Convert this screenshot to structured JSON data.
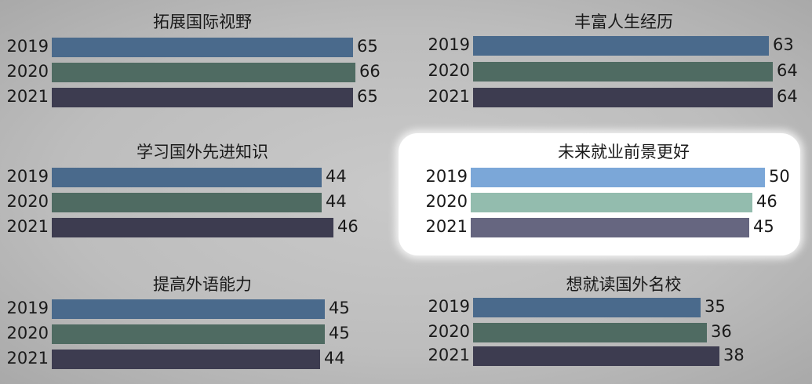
{
  "chart_data": {
    "type": "bar",
    "orientation": "horizontal",
    "categories": [
      "2019",
      "2020",
      "2021"
    ],
    "colors": {
      "2019": "#4a6a8c",
      "2020": "#4f6b62",
      "2021": "#3d3c50"
    },
    "highlight_colors": {
      "2019": "#7ba7d8",
      "2020": "#93bcae",
      "2021": "#666680"
    },
    "highlighted_panel": "未来就业前景更好",
    "panels": [
      {
        "title": "拓展国际视野",
        "values": [
          65,
          66,
          65
        ]
      },
      {
        "title": "丰富人生经历",
        "values": [
          63,
          64,
          64
        ]
      },
      {
        "title": "学习国外先进知识",
        "values": [
          44,
          44,
          46
        ]
      },
      {
        "title": "未来就业前景更好",
        "values": [
          50,
          46,
          45
        ]
      },
      {
        "title": "提高外语能力",
        "values": [
          45,
          45,
          44
        ]
      },
      {
        "title": "想就读国外名校",
        "values": [
          35,
          36,
          38
        ]
      }
    ]
  }
}
